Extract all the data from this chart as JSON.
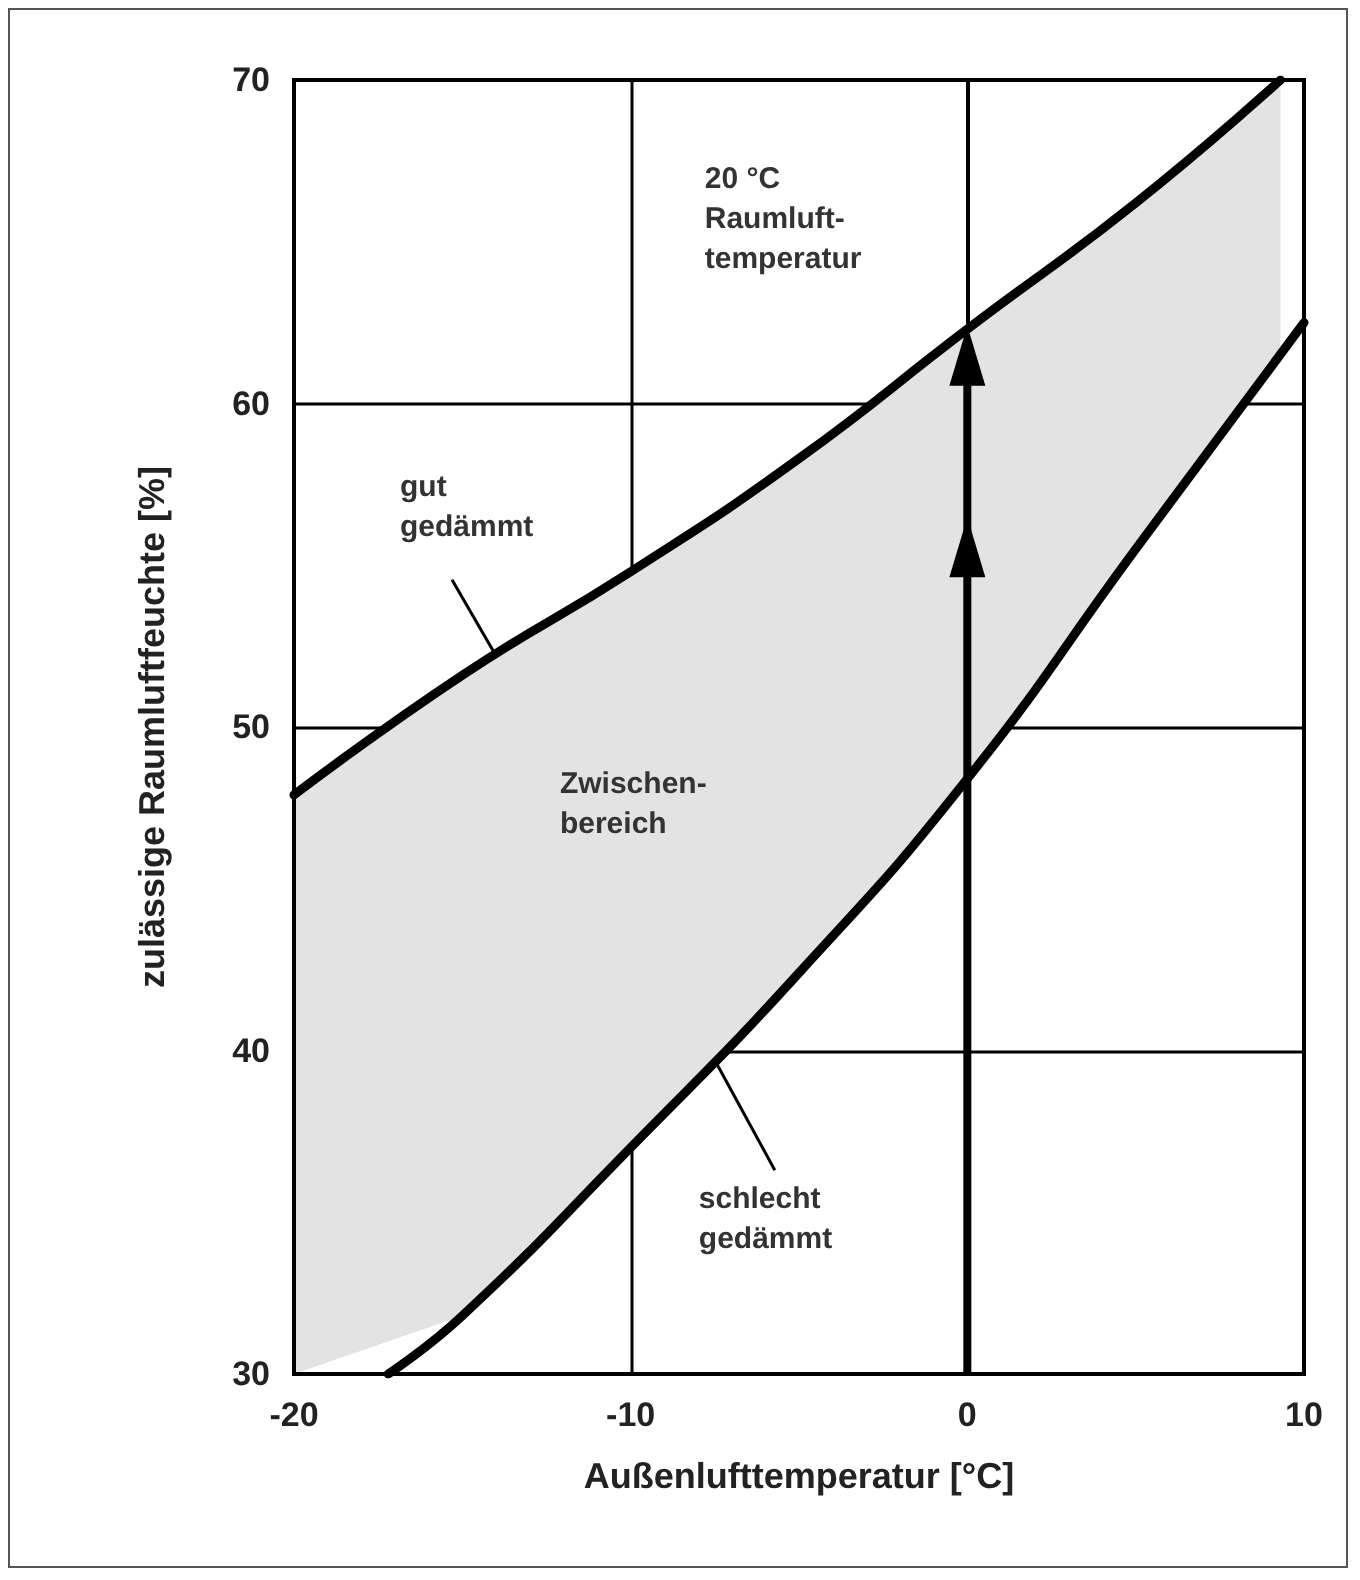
{
  "chart_data": {
    "type": "line",
    "xlabel": "Außenlufttemperatur [°C]",
    "ylabel": "zulässige Raumluftfeuchte [%]",
    "xlim": [
      -20,
      10
    ],
    "xticks": [
      -20,
      -10,
      0,
      10
    ],
    "ylim": [
      30,
      70
    ],
    "yticks": [
      30,
      40,
      50,
      60,
      70
    ],
    "grid": true,
    "marker": "none",
    "line_style": "solid",
    "series": [
      {
        "color": "#000000",
        "x": [
          -20,
          -15,
          -10,
          -5,
          0,
          5,
          9.3
        ],
        "values": [
          47.9,
          51.6,
          54.8,
          58.3,
          62.3,
          66.2,
          70
        ],
        "lower": [
          30,
          31.8,
          37,
          42.4,
          48.4,
          55.5,
          61.5
        ],
        "upper": [
          47.9,
          51.6,
          54.8,
          58.3,
          62.3,
          66.2,
          70
        ]
      },
      {
        "color": "#000000",
        "x": [
          -17.2,
          -15,
          -10,
          -5,
          0,
          5,
          10
        ],
        "values": [
          30,
          31.8,
          37,
          42.4,
          48.4,
          55.5,
          62.5
        ]
      }
    ],
    "annotations": [
      "20 °C\nRaumluft-\ntemperatur",
      "Zwischen-\nbereich",
      {
        "text": "gut\ngedämmt",
        "x": -14,
        "y": 52.2
      },
      {
        "text": "schlecht\ngedämmt",
        "x": -7.5,
        "y": 39.7
      }
    ]
  }
}
